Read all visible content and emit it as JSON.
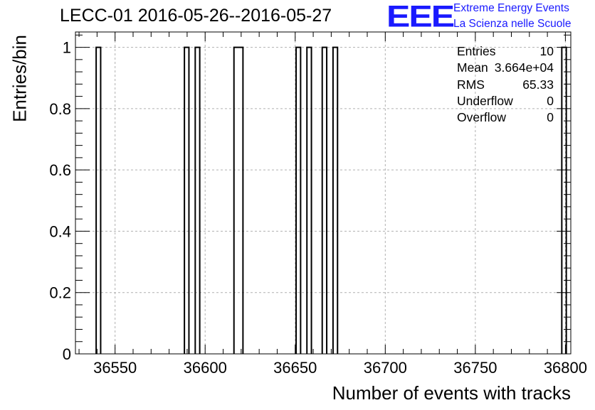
{
  "chart_data": {
    "type": "histogram",
    "title": "LECC-01 2016-05-26--2016-05-27",
    "xlabel": "Number of events with tracks",
    "ylabel": "Entries/bin",
    "xlim": [
      36528,
      36803
    ],
    "ylim": [
      0,
      1.05
    ],
    "xticks": [
      36550,
      36600,
      36650,
      36700,
      36750,
      36800
    ],
    "xtick_labels": [
      "36550",
      "36600",
      "36650",
      "36700",
      "36750",
      "36800"
    ],
    "yticks": [
      0,
      0.2,
      0.4,
      0.6,
      0.8,
      1
    ],
    "ytick_labels": [
      "0",
      "0.2",
      "0.4",
      "0.6",
      "0.8",
      "1"
    ],
    "grid": true,
    "bin_width": 2.5,
    "bins": [
      {
        "x_low": 36539.5,
        "x_high": 36542,
        "value": 1
      },
      {
        "x_low": 36588.5,
        "x_high": 36591,
        "value": 1
      },
      {
        "x_low": 36594.5,
        "x_high": 36597,
        "value": 1
      },
      {
        "x_low": 36616,
        "x_high": 36621,
        "value": 1
      },
      {
        "x_low": 36650.5,
        "x_high": 36653,
        "value": 1
      },
      {
        "x_low": 36656.5,
        "x_high": 36659,
        "value": 1
      },
      {
        "x_low": 36665,
        "x_high": 36667.5,
        "value": 1
      },
      {
        "x_low": 36671,
        "x_high": 36673.5,
        "value": 1
      },
      {
        "x_low": 36798,
        "x_high": 36800.5,
        "value": 1
      }
    ],
    "stats": [
      {
        "name": "Entries",
        "value": "10"
      },
      {
        "name": "Mean",
        "value": "3.664e+04"
      },
      {
        "name": "RMS",
        "value": "65.33"
      },
      {
        "name": "Underflow",
        "value": "0"
      },
      {
        "name": "Overflow",
        "value": "0"
      }
    ],
    "colors": {
      "line": "#000000",
      "grid": "#b0b0b0",
      "logo": "#1a1aff"
    }
  },
  "logo": {
    "mark": "EEE",
    "line1": "Extreme Energy Events",
    "line2": "La Scienza nelle Scuole"
  }
}
